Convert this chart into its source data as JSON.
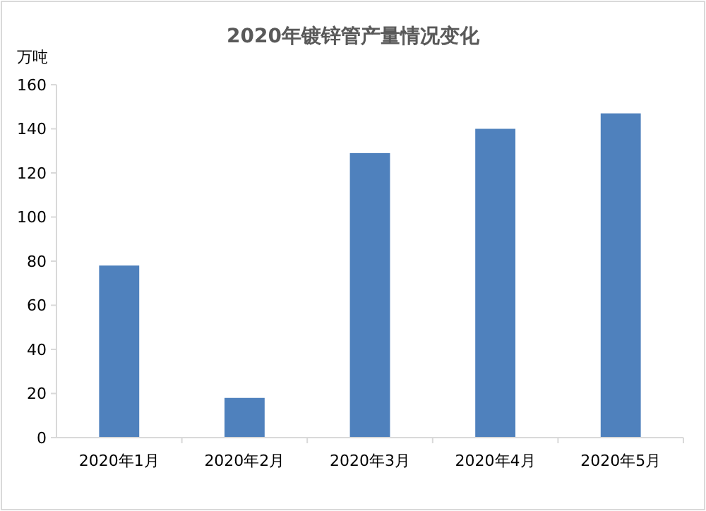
{
  "chart_data": {
    "type": "bar",
    "title": "2020年镀锌管产量情况变化",
    "ylabel": "万吨",
    "categories": [
      "2020年1月",
      "2020年2月",
      "2020年3月",
      "2020年4月",
      "2020年5月"
    ],
    "values": [
      78,
      18,
      129,
      140,
      147
    ],
    "color": "#4f81bd",
    "ylim": [
      0,
      160
    ],
    "yticks": [
      0,
      20,
      40,
      60,
      80,
      100,
      120,
      140,
      160
    ],
    "grid": false
  }
}
